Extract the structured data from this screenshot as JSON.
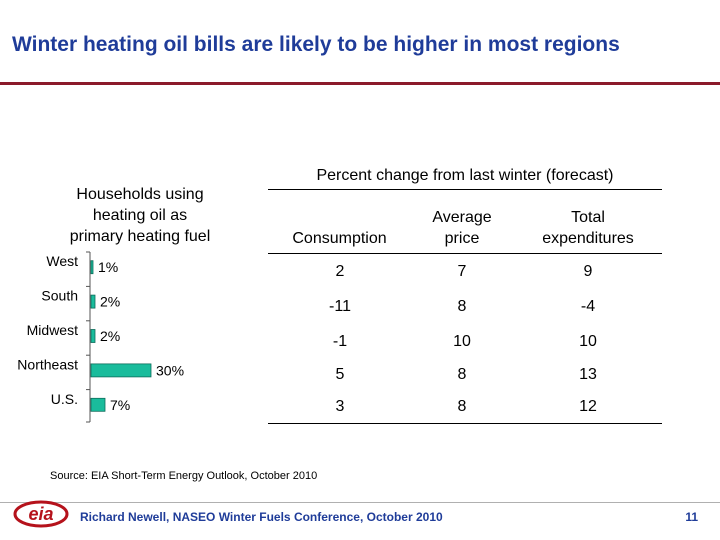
{
  "slide": {
    "title": "Winter heating oil bills are likely to be higher in most regions",
    "source": "Source: EIA Short-Term Energy Outlook, October 2010",
    "footer": "Richard Newell, NASEO Winter Fuels Conference, October 2010",
    "page_number": "11",
    "logo_text": "eia",
    "colors": {
      "title": "#1f3c99",
      "rule": "#8b1a2a",
      "bar": "#1abc9c",
      "logo": "#b5121b"
    }
  },
  "chart_data": [
    {
      "type": "bar",
      "orientation": "horizontal",
      "title_lines": [
        "Households using",
        "heating oil as",
        "primary heating fuel"
      ],
      "categories": [
        "West",
        "South",
        "Midwest",
        "Northeast",
        "U.S."
      ],
      "values": [
        1,
        2,
        2,
        30,
        7
      ],
      "data_labels": [
        "1%",
        "2%",
        "2%",
        "30%",
        "7%"
      ],
      "unit": "%",
      "xlim": [
        0,
        30
      ],
      "grid": false,
      "legend": "none"
    },
    {
      "type": "table",
      "title": "Percent change from last winter (forecast)",
      "columns": [
        {
          "lines": [
            "",
            "Consumption"
          ]
        },
        {
          "lines": [
            "Average",
            "price"
          ]
        },
        {
          "lines": [
            "Total",
            "expenditures"
          ]
        }
      ],
      "rows": [
        {
          "region": "West",
          "values": [
            "2",
            "7",
            "9"
          ]
        },
        {
          "region": "South",
          "values": [
            "-11",
            "8",
            "-4"
          ]
        },
        {
          "region": "Midwest",
          "values": [
            "-1",
            "10",
            "10"
          ]
        },
        {
          "region": "Northeast",
          "values": [
            "5",
            "8",
            "13"
          ]
        },
        {
          "region": "U.S.",
          "values": [
            "3",
            "8",
            "12"
          ]
        }
      ]
    }
  ]
}
